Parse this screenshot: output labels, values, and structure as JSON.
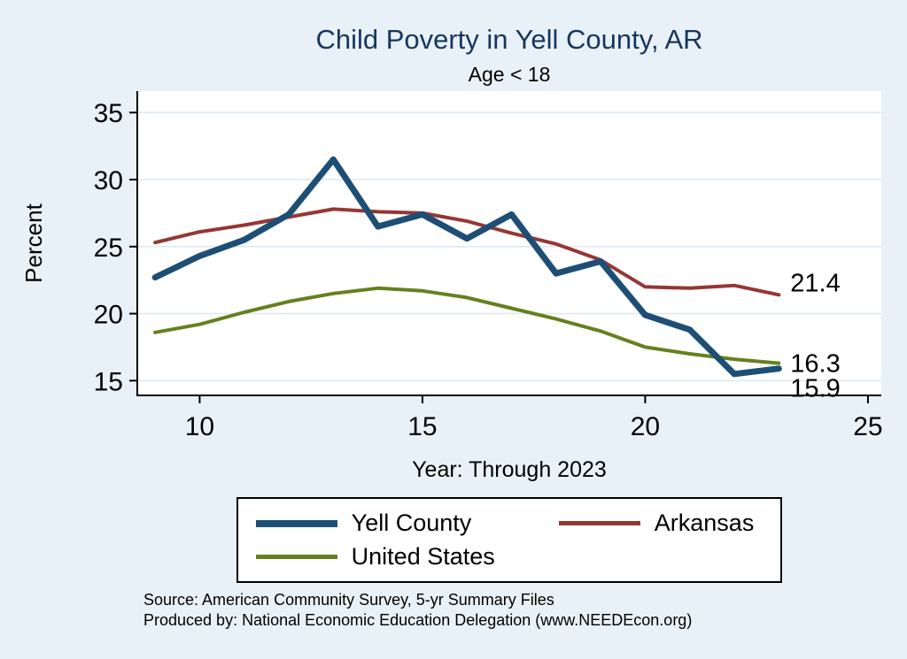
{
  "chart_data": {
    "type": "line",
    "title": "Child Poverty in Yell County, AR",
    "subtitle": "Age < 18",
    "ylabel": "Percent",
    "xlabel": "Year: Through 2023",
    "xlim": [
      8.6,
      25.3
    ],
    "ylim": [
      13.9,
      36.6
    ],
    "xticks": [
      10,
      15,
      20,
      25
    ],
    "yticks": [
      15,
      20,
      25,
      30,
      35
    ],
    "grid": "horizontal",
    "legend_position": "bottom",
    "x": [
      9,
      10,
      11,
      12,
      13,
      14,
      15,
      16,
      17,
      18,
      19,
      20,
      21,
      22,
      23
    ],
    "series": [
      {
        "name": "Yell County",
        "color": "#1d4f76",
        "width": 7,
        "end_label": "15.9",
        "end_label_dy": 22,
        "values": [
          22.7,
          24.3,
          25.5,
          27.4,
          31.5,
          26.5,
          27.4,
          25.6,
          27.4,
          23.0,
          23.9,
          19.9,
          18.8,
          15.5,
          15.9
        ]
      },
      {
        "name": "Arkansas",
        "color": "#953735",
        "width": 4,
        "end_label": "21.4",
        "end_label_dy": -14,
        "values": [
          25.3,
          26.1,
          26.6,
          27.2,
          27.8,
          27.6,
          27.5,
          26.9,
          26.0,
          25.2,
          24.0,
          22.0,
          21.9,
          22.1,
          21.4
        ]
      },
      {
        "name": "United States",
        "color": "#66801e",
        "width": 4,
        "end_label": "16.3",
        "end_label_dy": 0,
        "values": [
          18.6,
          19.2,
          20.1,
          20.9,
          21.5,
          21.9,
          21.7,
          21.2,
          20.4,
          19.6,
          18.7,
          17.5,
          17.0,
          16.6,
          16.3
        ]
      }
    ],
    "colors": {
      "grid": "#dbe7f1",
      "axis": "#000000",
      "title": "#17365d",
      "background": "#e9f1f8",
      "plot_bg": "#ffffff"
    }
  },
  "notes": {
    "source": "Source: American Community Survey, 5-yr Summary Files",
    "produced_by": "Produced by: National Economic Education Delegation (www.NEEDEcon.org)"
  }
}
